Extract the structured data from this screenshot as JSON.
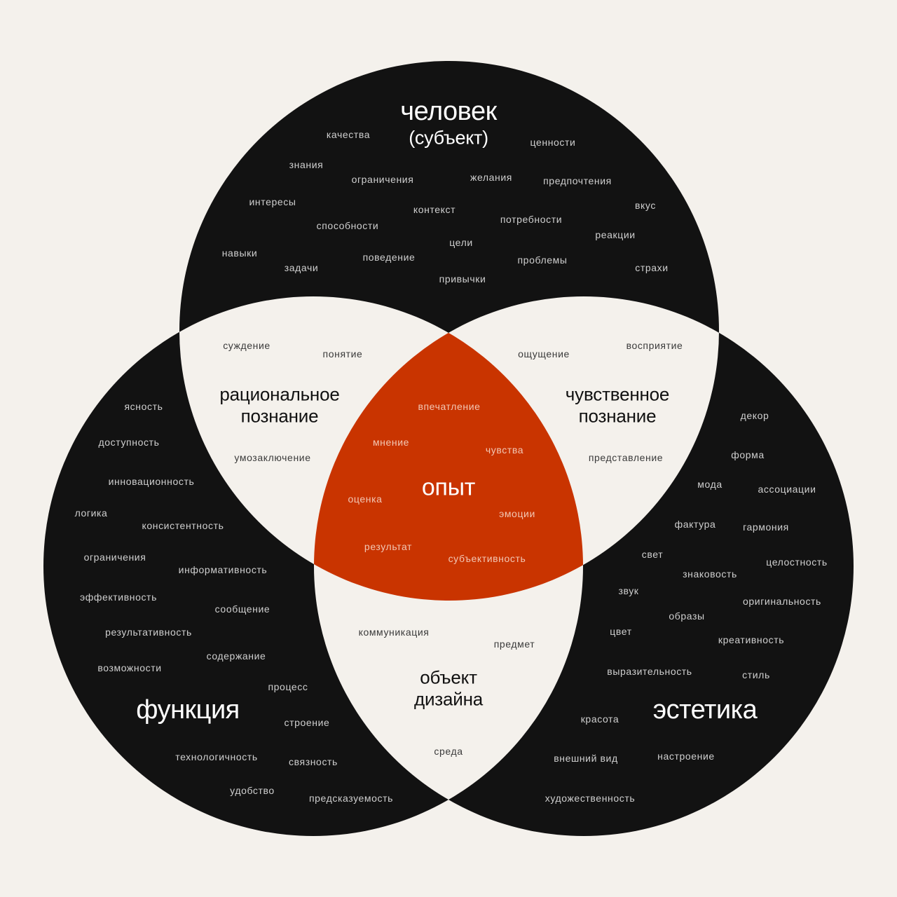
{
  "colors": {
    "background": "#f4f1ec",
    "circle": "#121212",
    "overlap": "#f4f1ec",
    "center": "#c93400"
  },
  "circles": {
    "top": {
      "title": "человек",
      "subtitle": "(субъект)",
      "words": [
        "качества",
        "ценности",
        "знания",
        "ограничения",
        "желания",
        "предпочтения",
        "интересы",
        "контекст",
        "потребности",
        "вкус",
        "способности",
        "цели",
        "реакции",
        "навыки",
        "задачи",
        "поведение",
        "проблемы",
        "страхи",
        "привычки"
      ]
    },
    "left": {
      "title": "функция",
      "words": [
        "ясность",
        "доступность",
        "инновационность",
        "логика",
        "консистентность",
        "ограничения",
        "информативность",
        "эффективность",
        "сообщение",
        "результативность",
        "содержание",
        "возможности",
        "процесс",
        "строение",
        "технологичность",
        "связность",
        "удобство",
        "предсказуемость"
      ]
    },
    "right": {
      "title": "эстетика",
      "words": [
        "декор",
        "форма",
        "мода",
        "ассоциации",
        "фактура",
        "гармония",
        "свет",
        "целостность",
        "знаковость",
        "звук",
        "оригинальность",
        "образы",
        "цвет",
        "креативность",
        "выразительность",
        "стиль",
        "красота",
        "настроение",
        "внешний вид",
        "художественность"
      ]
    }
  },
  "overlaps": {
    "top_left": {
      "title_line1": "рациональное",
      "title_line2": "познание",
      "words": [
        "суждение",
        "понятие",
        "умозаключение"
      ]
    },
    "top_right": {
      "title_line1": "чувственное",
      "title_line2": "познание",
      "words": [
        "ощущение",
        "восприятие",
        "представление"
      ]
    },
    "bottom": {
      "title_line1": "объект",
      "title_line2": "дизайна",
      "words": [
        "коммуникация",
        "предмет",
        "среда"
      ]
    },
    "center": {
      "title": "опыт",
      "words": [
        "впечатление",
        "мнение",
        "чувства",
        "оценка",
        "эмоции",
        "результат",
        "субъективность"
      ]
    }
  }
}
